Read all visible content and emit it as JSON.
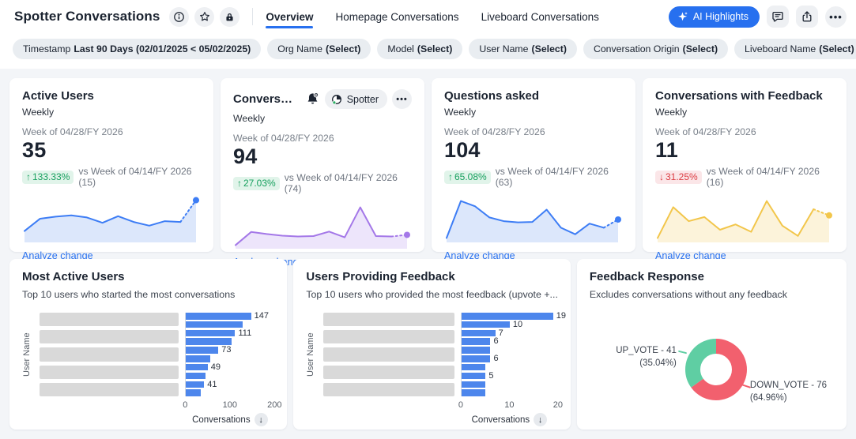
{
  "header": {
    "title": "Spotter Conversations",
    "title_icons": [
      "info-icon",
      "star-icon",
      "lock-icon"
    ],
    "tabs": [
      {
        "label": "Overview",
        "active": true
      },
      {
        "label": "Homepage Conversations",
        "active": false
      },
      {
        "label": "Liveboard Conversations",
        "active": false
      }
    ],
    "ai_button_label": "AI Highlights",
    "action_icons": [
      "comment-icon",
      "share-icon",
      "more-icon"
    ]
  },
  "filters": [
    {
      "label": "Timestamp",
      "value": "Last 90 Days (02/01/2025 < 05/02/2025)"
    },
    {
      "label": "Org Name",
      "value": "(Select)"
    },
    {
      "label": "Model",
      "value": "(Select)"
    },
    {
      "label": "User Name",
      "value": "(Select)"
    },
    {
      "label": "Conversation Origin",
      "value": "(Select)"
    },
    {
      "label": "Liveboard Name",
      "value": "(Select)"
    }
  ],
  "kpi_cards": [
    {
      "title": "Active Users",
      "subtitle": "Weekly",
      "period": "Week of 04/28/FY 2026",
      "value": "35",
      "change": {
        "direction": "up",
        "arrow": "↑",
        "percent": "133.33%",
        "compare": "vs Week of 04/14/FY 2026 (15)"
      },
      "link": "Analyze change",
      "color": "#3D7DF5",
      "fill": "#DCE7FB",
      "spark": [
        22,
        52,
        57,
        60,
        55,
        42,
        58,
        44,
        35,
        46,
        44,
        97
      ]
    },
    {
      "title": "Conversations",
      "subtitle": "Weekly",
      "period": "Week of 04/28/FY 2026",
      "value": "94",
      "change": {
        "direction": "up",
        "arrow": "↑",
        "percent": "27.03%",
        "compare": "vs Week of 04/14/FY 2026 (74)"
      },
      "link": "Analyze change",
      "color": "#A478E8",
      "fill": "#EDE5FB",
      "spark": [
        3,
        35,
        30,
        26,
        24,
        25,
        36,
        22,
        95,
        25,
        24,
        28
      ],
      "hover_tools": {
        "bell": "add-alert-icon",
        "source_label": "Spotter",
        "more": "more-icon"
      }
    },
    {
      "title": "Questions asked",
      "subtitle": "Weekly",
      "period": "Week of 04/28/FY 2026",
      "value": "104",
      "change": {
        "direction": "up",
        "arrow": "↑",
        "percent": "65.08%",
        "compare": "vs Week of 04/14/FY 2026 (63)"
      },
      "link": "Analyze change",
      "color": "#3D7DF5",
      "fill": "#DCE7FB",
      "spark": [
        5,
        95,
        82,
        55,
        46,
        43,
        44,
        74,
        30,
        14,
        40,
        30,
        50
      ]
    },
    {
      "title": "Conversations with Feedback",
      "subtitle": "Weekly",
      "period": "Week of 04/28/FY 2026",
      "value": "11",
      "change": {
        "direction": "down",
        "arrow": "↓",
        "percent": "31.25%",
        "compare": "vs Week of 04/14/FY 2026 (16)"
      },
      "link": "Analyze change",
      "color": "#F2C64B",
      "fill": "#FCF3DA",
      "spark": [
        5,
        80,
        46,
        56,
        25,
        38,
        20,
        95,
        35,
        10,
        75,
        60
      ]
    }
  ],
  "bottom_cards": {
    "most_active": {
      "type": "bar",
      "title": "Most Active Users",
      "subtitle": "Top 10 users who started the most conversations",
      "ylabel": "User Name",
      "xlabel": "Conversations",
      "ticks": [
        "0",
        "100",
        "200"
      ],
      "max": 200,
      "values": [
        147,
        128,
        111,
        103,
        73,
        55,
        49,
        44,
        41,
        33
      ],
      "value_labels": [
        "147",
        null,
        "111",
        null,
        "73",
        null,
        "49",
        null,
        "41",
        null
      ],
      "redacted_rows": 5,
      "bar_color": "#4D86EC"
    },
    "feedback_users": {
      "type": "bar",
      "title": "Users Providing Feedback",
      "subtitle": "Top 10 users who provided the most feedback (upvote +...",
      "ylabel": "User Name",
      "xlabel": "Conversations",
      "ticks": [
        "0",
        "10",
        "20"
      ],
      "max": 20,
      "values": [
        19,
        10,
        7,
        6,
        6,
        6,
        5,
        5,
        5,
        5
      ],
      "value_labels": [
        "19",
        "10",
        "7",
        "6",
        null,
        "6",
        null,
        "5",
        null,
        null
      ],
      "redacted_rows": 5,
      "bar_color": "#4D86EC"
    },
    "feedback_response": {
      "type": "donut",
      "title": "Feedback Response",
      "subtitle": "Excludes conversations without any feedback",
      "slices": [
        {
          "name": "DOWN_VOTE",
          "value": 76,
          "percent": 64.96,
          "color": "#F2606E",
          "label": "DOWN_VOTE - 76 (64.96%)"
        },
        {
          "name": "UP_VOTE",
          "value": 41,
          "percent": 35.04,
          "color": "#5FCEA3",
          "label": "UP_VOTE - 41 (35.04%)"
        }
      ]
    }
  },
  "palette": {
    "accent_blue": "#2770EF",
    "page_bg": "#F3F5F8",
    "up_green": "#17A05E",
    "down_red": "#DC3D43"
  }
}
